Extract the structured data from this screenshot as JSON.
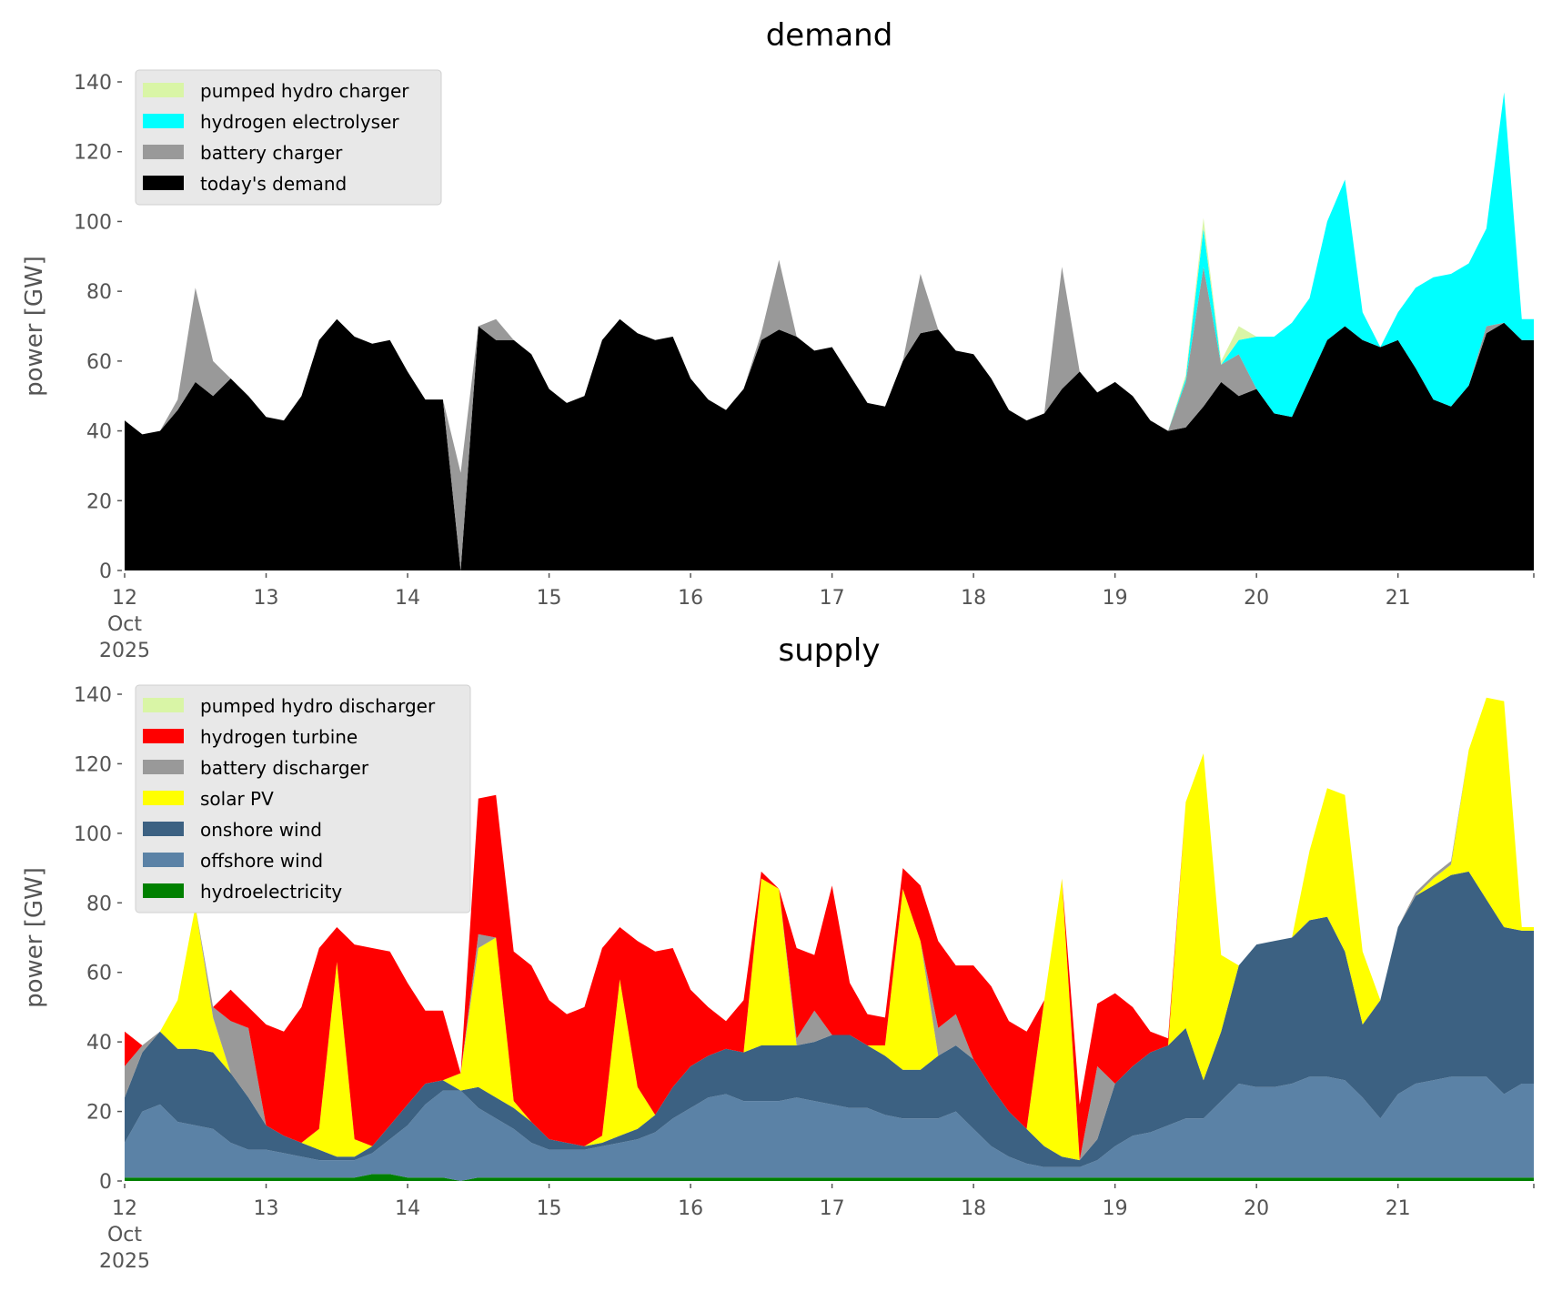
{
  "chart_data": [
    {
      "type": "area",
      "stacked": true,
      "title": "demand",
      "xlabel": "",
      "ylabel": "power [GW]",
      "ylim": [
        0,
        140
      ],
      "xlim": [
        12,
        21.96
      ],
      "yticks": [
        "0",
        "20",
        "40",
        "60",
        "80",
        "100",
        "120",
        "140"
      ],
      "xticks": [
        {
          "value": 12,
          "lines": [
            "12",
            "Oct",
            "2025"
          ]
        },
        {
          "value": 13,
          "lines": [
            "13"
          ]
        },
        {
          "value": 14,
          "lines": [
            "14"
          ]
        },
        {
          "value": 15,
          "lines": [
            "15"
          ]
        },
        {
          "value": 16,
          "lines": [
            "16"
          ]
        },
        {
          "value": 17,
          "lines": [
            "17"
          ]
        },
        {
          "value": 18,
          "lines": [
            "18"
          ]
        },
        {
          "value": 19,
          "lines": [
            "19"
          ]
        },
        {
          "value": 20,
          "lines": [
            "20"
          ]
        },
        {
          "value": 21,
          "lines": [
            "21"
          ]
        }
      ],
      "x_step_days": 0.125,
      "x_start": 12,
      "legend_position": "top-left",
      "series": [
        {
          "name": "today's demand",
          "color": "#000000",
          "values": [
            43,
            39,
            40,
            46,
            54,
            50,
            55,
            50,
            44,
            43,
            50,
            66,
            72,
            67,
            65,
            66,
            57,
            49,
            49,
            0,
            70,
            66,
            66,
            62,
            52,
            48,
            50,
            66,
            72,
            68,
            66,
            67,
            55,
            49,
            46,
            52,
            66,
            69,
            67,
            63,
            64,
            56,
            48,
            47,
            60,
            68,
            69,
            63,
            62,
            55,
            46,
            43,
            45,
            52,
            57,
            51,
            54,
            50,
            43,
            40,
            41,
            47,
            54,
            50,
            52,
            45,
            44,
            55,
            66,
            70,
            66,
            64,
            66,
            58,
            49,
            47,
            53,
            68,
            71,
            66
          ]
        },
        {
          "name": "battery charger",
          "color": "#999999",
          "values": [
            0,
            0,
            0,
            3,
            27,
            10,
            0,
            0,
            0,
            0,
            0,
            0,
            0,
            0,
            0,
            0,
            0,
            0,
            0,
            28,
            0,
            6,
            0,
            0,
            0,
            0,
            0,
            0,
            0,
            0,
            0,
            0,
            0,
            0,
            0,
            0,
            2,
            20,
            0,
            0,
            0,
            0,
            0,
            0,
            0,
            17,
            0,
            0,
            0,
            0,
            0,
            0,
            0,
            35,
            0,
            0,
            0,
            0,
            0,
            0,
            13,
            40,
            5,
            12,
            0,
            0,
            0,
            0,
            0,
            0,
            0,
            0,
            0,
            0,
            0,
            0,
            0,
            2,
            0,
            0
          ]
        },
        {
          "name": "hydrogen electrolyser",
          "color": "#00ffff",
          "values": [
            0,
            0,
            0,
            0,
            0,
            0,
            0,
            0,
            0,
            0,
            0,
            0,
            0,
            0,
            0,
            0,
            0,
            0,
            0,
            0,
            0,
            0,
            0,
            0,
            0,
            0,
            0,
            0,
            0,
            0,
            0,
            0,
            0,
            0,
            0,
            0,
            0,
            0,
            0,
            0,
            0,
            0,
            0,
            0,
            0,
            0,
            0,
            0,
            0,
            0,
            0,
            0,
            0,
            0,
            0,
            0,
            0,
            0,
            0,
            0,
            1,
            11,
            0,
            4,
            15,
            22,
            27,
            23,
            34,
            42,
            8,
            0,
            8,
            23,
            35,
            38,
            35,
            28,
            66,
            6
          ]
        },
        {
          "name": "pumped hydro charger",
          "color": "#d9f5a6",
          "values": [
            0,
            0,
            0,
            0,
            0,
            0,
            0,
            0,
            0,
            0,
            0,
            0,
            0,
            0,
            0,
            0,
            0,
            0,
            0,
            0,
            0,
            0,
            0,
            0,
            0,
            0,
            0,
            0,
            0,
            0,
            0,
            0,
            0,
            0,
            0,
            0,
            0,
            0,
            0,
            0,
            0,
            0,
            0,
            0,
            0,
            0,
            0,
            0,
            0,
            0,
            0,
            0,
            0,
            0,
            0,
            0,
            0,
            0,
            0,
            0,
            1,
            3,
            1,
            4,
            0,
            0,
            0,
            0,
            0,
            0,
            0,
            0,
            0,
            0,
            0,
            0,
            0,
            0,
            0,
            0
          ]
        }
      ]
    },
    {
      "type": "area",
      "stacked": true,
      "title": "supply",
      "xlabel": "",
      "ylabel": "power [GW]",
      "ylim": [
        0,
        140
      ],
      "xlim": [
        12,
        21.96
      ],
      "yticks": [
        "0",
        "20",
        "40",
        "60",
        "80",
        "100",
        "120",
        "140"
      ],
      "xticks": [
        {
          "value": 12,
          "lines": [
            "12",
            "Oct",
            "2025"
          ]
        },
        {
          "value": 13,
          "lines": [
            "13"
          ]
        },
        {
          "value": 14,
          "lines": [
            "14"
          ]
        },
        {
          "value": 15,
          "lines": [
            "15"
          ]
        },
        {
          "value": 16,
          "lines": [
            "16"
          ]
        },
        {
          "value": 17,
          "lines": [
            "17"
          ]
        },
        {
          "value": 18,
          "lines": [
            "18"
          ]
        },
        {
          "value": 19,
          "lines": [
            "19"
          ]
        },
        {
          "value": 20,
          "lines": [
            "20"
          ]
        },
        {
          "value": 21,
          "lines": [
            "21"
          ]
        }
      ],
      "x_step_days": 0.125,
      "x_start": 12,
      "legend_position": "top-left",
      "series": [
        {
          "name": "hydroelectricity",
          "color": "#008000",
          "values": [
            1,
            1,
            1,
            1,
            1,
            1,
            1,
            1,
            1,
            1,
            1,
            1,
            1,
            1,
            2,
            2,
            1,
            1,
            1,
            0,
            1,
            1,
            1,
            1,
            1,
            1,
            1,
            1,
            1,
            1,
            1,
            1,
            1,
            1,
            1,
            1,
            1,
            1,
            1,
            1,
            1,
            1,
            1,
            1,
            1,
            1,
            1,
            1,
            1,
            1,
            1,
            1,
            1,
            1,
            1,
            1,
            1,
            1,
            1,
            1,
            1,
            1,
            1,
            1,
            1,
            1,
            1,
            1,
            1,
            1,
            1,
            1,
            1,
            1,
            1,
            1,
            1,
            1,
            1,
            1
          ]
        },
        {
          "name": "offshore wind",
          "color": "#5b82a6",
          "values": [
            10,
            19,
            21,
            16,
            15,
            14,
            10,
            8,
            8,
            7,
            6,
            5,
            5,
            5,
            6,
            10,
            15,
            21,
            25,
            26,
            20,
            17,
            14,
            10,
            8,
            8,
            8,
            9,
            10,
            11,
            13,
            17,
            20,
            23,
            24,
            22,
            22,
            22,
            23,
            22,
            21,
            20,
            20,
            18,
            17,
            17,
            17,
            19,
            14,
            9,
            6,
            4,
            3,
            3,
            3,
            5,
            9,
            12,
            13,
            15,
            17,
            17,
            22,
            27,
            26,
            26,
            27,
            29,
            29,
            28,
            23,
            17,
            24,
            27,
            28,
            29,
            29,
            29,
            24,
            27
          ]
        },
        {
          "name": "onshore wind",
          "color": "#3c6182",
          "values": [
            13,
            17,
            21,
            21,
            22,
            22,
            20,
            15,
            7,
            5,
            4,
            3,
            1,
            1,
            2,
            4,
            6,
            6,
            3,
            0,
            6,
            6,
            6,
            6,
            3,
            2,
            1,
            1,
            2,
            3,
            5,
            9,
            12,
            12,
            13,
            14,
            16,
            16,
            15,
            17,
            20,
            21,
            18,
            17,
            14,
            14,
            18,
            19,
            20,
            17,
            13,
            10,
            6,
            3,
            2,
            6,
            18,
            20,
            23,
            23,
            26,
            11,
            20,
            34,
            41,
            42,
            42,
            45,
            46,
            37,
            21,
            34,
            48,
            54,
            56,
            58,
            59,
            51,
            48,
            44
          ]
        },
        {
          "name": "solar PV",
          "color": "#ffff00",
          "values": [
            0,
            0,
            0,
            14,
            41,
            10,
            0,
            0,
            0,
            0,
            0,
            6,
            56,
            5,
            0,
            0,
            0,
            0,
            0,
            5,
            40,
            46,
            2,
            0,
            0,
            0,
            0,
            2,
            45,
            12,
            0,
            0,
            0,
            0,
            0,
            0,
            48,
            45,
            0,
            0,
            0,
            0,
            0,
            3,
            52,
            37,
            0,
            0,
            0,
            0,
            0,
            0,
            42,
            80,
            0,
            0,
            0,
            0,
            0,
            0,
            65,
            94,
            22,
            0,
            0,
            0,
            0,
            20,
            37,
            45,
            21,
            0,
            0,
            0,
            2,
            3,
            35,
            58,
            65,
            1
          ]
        },
        {
          "name": "battery discharger",
          "color": "#999999",
          "values": [
            9,
            2,
            0,
            0,
            0,
            3,
            15,
            20,
            0,
            0,
            0,
            0,
            0,
            0,
            0,
            0,
            0,
            0,
            0,
            0,
            4,
            0,
            0,
            0,
            0,
            0,
            0,
            0,
            0,
            0,
            0,
            0,
            0,
            0,
            0,
            0,
            0,
            0,
            2,
            9,
            0,
            0,
            0,
            0,
            0,
            0,
            8,
            9,
            0,
            0,
            0,
            0,
            0,
            0,
            0,
            21,
            0,
            0,
            0,
            0,
            0,
            0,
            0,
            0,
            0,
            0,
            0,
            0,
            0,
            0,
            0,
            0,
            0,
            1,
            1,
            1,
            0,
            0,
            0,
            0
          ]
        },
        {
          "name": "hydrogen turbine",
          "color": "#ff0000",
          "values": [
            10,
            0,
            0,
            0,
            0,
            0,
            9,
            6,
            29,
            30,
            39,
            52,
            10,
            56,
            57,
            50,
            35,
            21,
            20,
            0,
            39,
            41,
            43,
            45,
            40,
            37,
            40,
            54,
            15,
            42,
            47,
            40,
            22,
            14,
            8,
            15,
            2,
            0,
            26,
            16,
            43,
            15,
            9,
            8,
            6,
            16,
            25,
            14,
            27,
            29,
            26,
            28,
            0,
            0,
            16,
            18,
            26,
            17,
            6,
            2,
            0,
            0,
            0,
            0,
            0,
            0,
            0,
            0,
            0,
            0,
            0,
            0,
            0,
            0,
            0,
            0,
            0,
            0,
            0,
            0
          ]
        },
        {
          "name": "pumped hydro discharger",
          "color": "#d9f5a6",
          "values": [
            0,
            0,
            0,
            0,
            0,
            0,
            0,
            0,
            0,
            0,
            0,
            0,
            0,
            0,
            0,
            0,
            0,
            0,
            0,
            0,
            0,
            0,
            0,
            0,
            0,
            0,
            0,
            0,
            0,
            0,
            0,
            0,
            0,
            0,
            0,
            0,
            0,
            0,
            0,
            0,
            0,
            0,
            0,
            0,
            0,
            0,
            0,
            0,
            0,
            0,
            0,
            0,
            0,
            0,
            0,
            0,
            0,
            0,
            0,
            0,
            0,
            0,
            0,
            0,
            0,
            0,
            0,
            0,
            0,
            0,
            0,
            0,
            0,
            0,
            0,
            0,
            0,
            0,
            0,
            0
          ]
        }
      ]
    }
  ]
}
